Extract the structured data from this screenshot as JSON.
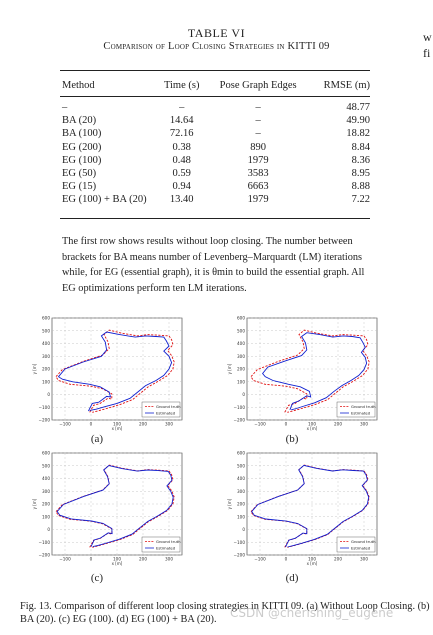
{
  "table": {
    "number": "TABLE VI",
    "caption": "Comparison of Loop Closing Strategies in KITTI 09",
    "headers": [
      "Method",
      "Time (s)",
      "Pose Graph Edges",
      "RMSE (m)"
    ],
    "rows": [
      [
        "–",
        "–",
        "–",
        "48.77"
      ],
      [
        "BA (20)",
        "14.64",
        "–",
        "49.90"
      ],
      [
        "BA (100)",
        "72.16",
        "–",
        "18.82"
      ],
      [
        "EG (200)",
        "0.38",
        "890",
        "8.84"
      ],
      [
        "EG (100)",
        "0.48",
        "1979",
        "8.36"
      ],
      [
        "EG (50)",
        "0.59",
        "3583",
        "8.95"
      ],
      [
        "EG (15)",
        "0.94",
        "6663",
        "8.88"
      ],
      [
        "EG (100) + BA (20)",
        "13.40",
        "1979",
        "7.22"
      ]
    ]
  },
  "note": "The first row shows results without loop closing. The number between brackets for BA means number of Levenberg–Marquardt (LM) iterations while, for EG (essential graph), it is θmin to build the essential graph. All EG optimizations perform ten LM iterations.",
  "edge_text": [
    "w",
    "fi"
  ],
  "figures": [
    {
      "label": "(a)",
      "legend": [
        "Ground truth",
        "Estimated"
      ],
      "xlabel": "x [m]",
      "ylabel": "y [m]",
      "xticks": [
        "−100",
        "0",
        "100",
        "200",
        "300"
      ],
      "yticks": [
        "600",
        "500",
        "400",
        "300",
        "200",
        "100",
        "0",
        "−100",
        "−200"
      ],
      "est": [
        [
          -10,
          -130
        ],
        [
          5,
          -70
        ],
        [
          30,
          -60
        ],
        [
          60,
          -15
        ],
        [
          75,
          -20
        ],
        [
          70,
          20
        ],
        [
          35,
          60
        ],
        [
          -5,
          80
        ],
        [
          -70,
          100
        ],
        [
          -110,
          120
        ],
        [
          -125,
          140
        ],
        [
          -100,
          200
        ],
        [
          -30,
          255
        ],
        [
          40,
          300
        ],
        [
          60,
          350
        ],
        [
          55,
          410
        ],
        [
          40,
          460
        ],
        [
          60,
          490
        ],
        [
          110,
          470
        ],
        [
          170,
          450
        ],
        [
          210,
          460
        ],
        [
          250,
          455
        ],
        [
          280,
          450
        ],
        [
          290,
          420
        ],
        [
          300,
          380
        ],
        [
          280,
          340
        ],
        [
          300,
          300
        ],
        [
          310,
          250
        ],
        [
          300,
          200
        ],
        [
          280,
          150
        ],
        [
          250,
          110
        ],
        [
          210,
          70
        ],
        [
          180,
          20
        ],
        [
          150,
          -30
        ],
        [
          100,
          -70
        ],
        [
          55,
          -95
        ],
        [
          20,
          -115
        ],
        [
          -5,
          -125
        ]
      ],
      "gt": [
        [
          -5,
          -140
        ],
        [
          10,
          -85
        ],
        [
          35,
          -70
        ],
        [
          65,
          -30
        ],
        [
          80,
          -35
        ],
        [
          80,
          5
        ],
        [
          45,
          45
        ],
        [
          0,
          65
        ],
        [
          -80,
          80
        ],
        [
          -125,
          110
        ],
        [
          -135,
          140
        ],
        [
          -110,
          195
        ],
        [
          -30,
          260
        ],
        [
          45,
          310
        ],
        [
          70,
          360
        ],
        [
          65,
          415
        ],
        [
          50,
          470
        ],
        [
          70,
          505
        ],
        [
          120,
          480
        ],
        [
          180,
          460
        ],
        [
          220,
          470
        ],
        [
          260,
          465
        ],
        [
          300,
          460
        ],
        [
          310,
          430
        ],
        [
          315,
          390
        ],
        [
          295,
          345
        ],
        [
          310,
          305
        ],
        [
          320,
          255
        ],
        [
          315,
          200
        ],
        [
          295,
          150
        ],
        [
          260,
          105
        ],
        [
          220,
          60
        ],
        [
          190,
          10
        ],
        [
          160,
          -40
        ],
        [
          110,
          -80
        ],
        [
          60,
          -110
        ],
        [
          25,
          -130
        ],
        [
          5,
          -140
        ]
      ]
    },
    {
      "label": "(b)",
      "legend": [
        "Ground truth",
        "Estimated"
      ],
      "xlabel": "x [m]",
      "ylabel": "y [m]",
      "xticks": [
        "−100",
        "0",
        "100",
        "200",
        "300"
      ],
      "yticks": [
        "600",
        "500",
        "400",
        "300",
        "200",
        "100",
        "0",
        "−100",
        "−200"
      ],
      "est": [
        [
          15,
          -120
        ],
        [
          25,
          -70
        ],
        [
          50,
          -50
        ],
        [
          80,
          -10
        ],
        [
          95,
          -20
        ],
        [
          90,
          25
        ],
        [
          55,
          60
        ],
        [
          10,
          80
        ],
        [
          -50,
          110
        ],
        [
          -80,
          140
        ],
        [
          -90,
          165
        ],
        [
          -70,
          215
        ],
        [
          0,
          265
        ],
        [
          60,
          305
        ],
        [
          80,
          350
        ],
        [
          75,
          405
        ],
        [
          60,
          455
        ],
        [
          80,
          485
        ],
        [
          130,
          470
        ],
        [
          180,
          450
        ],
        [
          220,
          460
        ],
        [
          255,
          455
        ],
        [
          285,
          445
        ],
        [
          295,
          410
        ],
        [
          305,
          370
        ],
        [
          290,
          330
        ],
        [
          305,
          290
        ],
        [
          310,
          245
        ],
        [
          300,
          195
        ],
        [
          280,
          150
        ],
        [
          250,
          110
        ],
        [
          215,
          70
        ],
        [
          185,
          25
        ],
        [
          155,
          -25
        ],
        [
          110,
          -65
        ],
        [
          70,
          -90
        ],
        [
          40,
          -110
        ],
        [
          20,
          -120
        ]
      ],
      "gt": [
        [
          -5,
          -140
        ],
        [
          10,
          -85
        ],
        [
          35,
          -70
        ],
        [
          65,
          -30
        ],
        [
          80,
          -35
        ],
        [
          80,
          5
        ],
        [
          45,
          45
        ],
        [
          0,
          65
        ],
        [
          -80,
          80
        ],
        [
          -125,
          110
        ],
        [
          -135,
          140
        ],
        [
          -110,
          195
        ],
        [
          -30,
          260
        ],
        [
          45,
          310
        ],
        [
          70,
          360
        ],
        [
          65,
          415
        ],
        [
          50,
          470
        ],
        [
          70,
          505
        ],
        [
          120,
          480
        ],
        [
          180,
          460
        ],
        [
          220,
          470
        ],
        [
          260,
          465
        ],
        [
          300,
          460
        ],
        [
          310,
          430
        ],
        [
          315,
          390
        ],
        [
          295,
          345
        ],
        [
          310,
          305
        ],
        [
          320,
          255
        ],
        [
          315,
          200
        ],
        [
          295,
          150
        ],
        [
          260,
          105
        ],
        [
          220,
          60
        ],
        [
          190,
          10
        ],
        [
          160,
          -40
        ],
        [
          110,
          -80
        ],
        [
          60,
          -110
        ],
        [
          25,
          -130
        ],
        [
          5,
          -140
        ]
      ]
    },
    {
      "label": "(c)",
      "legend": [
        "Ground truth",
        "Estimated"
      ],
      "xlabel": "x [m]",
      "ylabel": "y [m]",
      "xticks": [
        "−100",
        "0",
        "100",
        "200",
        "300"
      ],
      "yticks": [
        "600",
        "500",
        "400",
        "300",
        "200",
        "100",
        "0",
        "−100",
        "−200"
      ],
      "est": [
        [
          0,
          -135
        ],
        [
          12,
          -82
        ],
        [
          37,
          -67
        ],
        [
          66,
          -27
        ],
        [
          81,
          -32
        ],
        [
          80,
          8
        ],
        [
          46,
          48
        ],
        [
          2,
          67
        ],
        [
          -76,
          83
        ],
        [
          -120,
          112
        ],
        [
          -130,
          141
        ],
        [
          -106,
          196
        ],
        [
          -28,
          260
        ],
        [
          46,
          309
        ],
        [
          70,
          358
        ],
        [
          64,
          413
        ],
        [
          49,
          467
        ],
        [
          69,
          502
        ],
        [
          119,
          478
        ],
        [
          178,
          458
        ],
        [
          219,
          467
        ],
        [
          258,
          462
        ],
        [
          297,
          456
        ],
        [
          307,
          426
        ],
        [
          311,
          386
        ],
        [
          292,
          342
        ],
        [
          306,
          302
        ],
        [
          316,
          253
        ],
        [
          311,
          199
        ],
        [
          291,
          150
        ],
        [
          257,
          107
        ],
        [
          218,
          63
        ],
        [
          188,
          14
        ],
        [
          158,
          -36
        ],
        [
          109,
          -76
        ],
        [
          60,
          -106
        ],
        [
          27,
          -125
        ],
        [
          7,
          -134
        ]
      ],
      "gt": [
        [
          -5,
          -140
        ],
        [
          10,
          -85
        ],
        [
          35,
          -70
        ],
        [
          65,
          -30
        ],
        [
          80,
          -35
        ],
        [
          80,
          5
        ],
        [
          45,
          45
        ],
        [
          0,
          65
        ],
        [
          -80,
          80
        ],
        [
          -125,
          110
        ],
        [
          -135,
          140
        ],
        [
          -110,
          195
        ],
        [
          -30,
          260
        ],
        [
          45,
          310
        ],
        [
          70,
          360
        ],
        [
          65,
          415
        ],
        [
          50,
          470
        ],
        [
          70,
          505
        ],
        [
          120,
          480
        ],
        [
          180,
          460
        ],
        [
          220,
          470
        ],
        [
          260,
          465
        ],
        [
          300,
          460
        ],
        [
          310,
          430
        ],
        [
          315,
          390
        ],
        [
          295,
          345
        ],
        [
          310,
          305
        ],
        [
          320,
          255
        ],
        [
          315,
          200
        ],
        [
          295,
          150
        ],
        [
          260,
          105
        ],
        [
          220,
          60
        ],
        [
          190,
          10
        ],
        [
          160,
          -40
        ],
        [
          110,
          -80
        ],
        [
          60,
          -110
        ],
        [
          25,
          -130
        ],
        [
          5,
          -140
        ]
      ]
    },
    {
      "label": "(d)",
      "legend": [
        "Ground truth",
        "Estimated"
      ],
      "xlabel": "x [m]",
      "ylabel": "y [m]",
      "xticks": [
        "−100",
        "0",
        "100",
        "200",
        "300"
      ],
      "yticks": [
        "600",
        "500",
        "400",
        "300",
        "200",
        "100",
        "0",
        "−100",
        "−200"
      ],
      "est": [
        [
          -2,
          -137
        ],
        [
          11,
          -83
        ],
        [
          36,
          -68
        ],
        [
          65,
          -28
        ],
        [
          80,
          -33
        ],
        [
          80,
          7
        ],
        [
          45,
          47
        ],
        [
          1,
          66
        ],
        [
          -78,
          82
        ],
        [
          -122,
          111
        ],
        [
          -132,
          141
        ],
        [
          -108,
          196
        ],
        [
          -29,
          260
        ],
        [
          45,
          310
        ],
        [
          70,
          359
        ],
        [
          64,
          414
        ],
        [
          49,
          468
        ],
        [
          69,
          503
        ],
        [
          119,
          479
        ],
        [
          179,
          459
        ],
        [
          219,
          468
        ],
        [
          259,
          463
        ],
        [
          298,
          458
        ],
        [
          308,
          428
        ],
        [
          313,
          388
        ],
        [
          293,
          344
        ],
        [
          308,
          304
        ],
        [
          318,
          254
        ],
        [
          313,
          200
        ],
        [
          293,
          150
        ],
        [
          258,
          106
        ],
        [
          219,
          62
        ],
        [
          189,
          12
        ],
        [
          159,
          -38
        ],
        [
          109,
          -78
        ],
        [
          60,
          -108
        ],
        [
          26,
          -127
        ],
        [
          6,
          -137
        ]
      ],
      "gt": [
        [
          -5,
          -140
        ],
        [
          10,
          -85
        ],
        [
          35,
          -70
        ],
        [
          65,
          -30
        ],
        [
          80,
          -35
        ],
        [
          80,
          5
        ],
        [
          45,
          45
        ],
        [
          0,
          65
        ],
        [
          -80,
          80
        ],
        [
          -125,
          110
        ],
        [
          -135,
          140
        ],
        [
          -110,
          195
        ],
        [
          -30,
          260
        ],
        [
          45,
          310
        ],
        [
          70,
          360
        ],
        [
          65,
          415
        ],
        [
          50,
          470
        ],
        [
          70,
          505
        ],
        [
          120,
          480
        ],
        [
          180,
          460
        ],
        [
          220,
          470
        ],
        [
          260,
          465
        ],
        [
          300,
          460
        ],
        [
          310,
          430
        ],
        [
          315,
          390
        ],
        [
          295,
          345
        ],
        [
          310,
          305
        ],
        [
          320,
          255
        ],
        [
          315,
          200
        ],
        [
          295,
          150
        ],
        [
          260,
          105
        ],
        [
          220,
          60
        ],
        [
          190,
          10
        ],
        [
          160,
          -40
        ],
        [
          110,
          -80
        ],
        [
          60,
          -110
        ],
        [
          25,
          -130
        ],
        [
          5,
          -140
        ]
      ]
    }
  ],
  "fig_caption": "Fig. 13.   Comparison of different loop closing strategies in KITTI 09. (a) Without Loop Closing. (b) BA (20). (c) EG (100). (d) EG (100) + BA (20).",
  "watermark": "CSDN @cherishing_eugene"
}
